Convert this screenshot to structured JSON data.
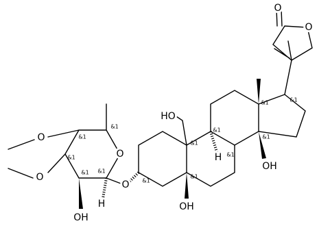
{
  "atom_labels": [
    "O",
    "O",
    "&1",
    "&1",
    "HO",
    "&1",
    "&1",
    "&1",
    "H",
    "&1",
    "OH",
    "&1",
    "OH",
    "&1",
    "O",
    "O",
    "&1",
    "O",
    "&1",
    "&1",
    "O",
    "&1",
    "OH",
    "&1",
    "H"
  ]
}
